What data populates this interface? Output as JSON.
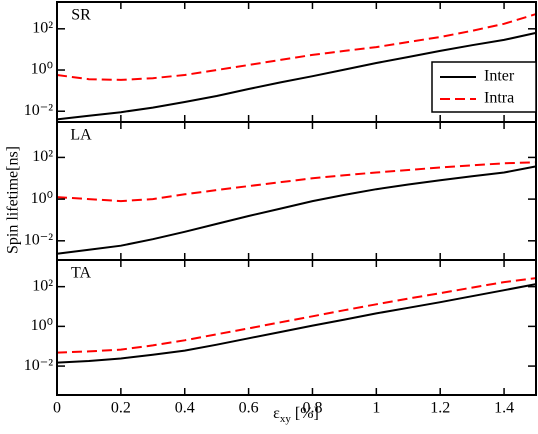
{
  "chart_data": [
    {
      "type": "line",
      "label": "SR",
      "log_y": true,
      "legend": "upper right",
      "x": [
        0,
        0.1,
        0.2,
        0.3,
        0.4,
        0.5,
        0.6,
        0.7,
        0.8,
        0.9,
        1.0,
        1.1,
        1.2,
        1.3,
        1.4,
        1.5
      ],
      "xlim": [
        0,
        1.5
      ],
      "ylim": [
        0.003,
        2000
      ],
      "yticks": [
        {
          "value": 0.01,
          "label": "10⁻²"
        },
        {
          "value": 1,
          "label": "10⁰"
        },
        {
          "value": 100,
          "label": "10²"
        }
      ],
      "series": [
        {
          "name": "Inter",
          "color": "#000000",
          "linestyle": "solid",
          "values": [
            0.004,
            0.006,
            0.009,
            0.015,
            0.028,
            0.055,
            0.12,
            0.25,
            0.5,
            1.05,
            2.2,
            4.3,
            8.5,
            16,
            29,
            63
          ]
        },
        {
          "name": "Intra",
          "color": "#ff0000",
          "linestyle": "dashed",
          "values": [
            0.57,
            0.36,
            0.33,
            0.4,
            0.57,
            1,
            1.75,
            3.1,
            5.4,
            8.5,
            13,
            23,
            40,
            80,
            175,
            520
          ]
        }
      ]
    },
    {
      "type": "line",
      "label": "LA",
      "log_y": true,
      "x": [
        0,
        0.1,
        0.2,
        0.3,
        0.4,
        0.5,
        0.6,
        0.7,
        0.8,
        0.9,
        1.0,
        1.1,
        1.2,
        1.3,
        1.4,
        1.5
      ],
      "xlim": [
        0,
        1.5
      ],
      "ylim": [
        0.0012,
        5000
      ],
      "yticks": [
        {
          "value": 0.01,
          "label": "10⁻²"
        },
        {
          "value": 1,
          "label": "10⁰"
        },
        {
          "value": 100,
          "label": "10²"
        }
      ],
      "series": [
        {
          "name": "Inter",
          "color": "#000000",
          "linestyle": "solid",
          "values": [
            0.0024,
            0.0037,
            0.0058,
            0.012,
            0.027,
            0.065,
            0.155,
            0.35,
            0.8,
            1.6,
            3,
            5,
            8,
            12.5,
            19,
            37
          ]
        },
        {
          "name": "Intra",
          "color": "#ff0000",
          "linestyle": "dashed",
          "values": [
            1.25,
            1,
            0.8,
            1,
            1.7,
            2.7,
            4.2,
            6.5,
            10,
            14,
            19,
            25,
            33,
            42,
            52,
            58
          ]
        }
      ]
    },
    {
      "type": "line",
      "label": "TA",
      "log_y": true,
      "x": [
        0,
        0.1,
        0.2,
        0.3,
        0.4,
        0.5,
        0.6,
        0.7,
        0.8,
        0.9,
        1.0,
        1.1,
        1.2,
        1.3,
        1.4,
        1.5
      ],
      "xlim": [
        0,
        1.5
      ],
      "ylim": [
        0.00035,
        2200
      ],
      "xticks": [
        0,
        0.2,
        0.4,
        0.6,
        0.8,
        1,
        1.2,
        1.4
      ],
      "xlabel": "ε",
      "xlabel_subscript": "xy",
      "xlabel_unit": "[%]",
      "ylabel": "Spin lifetime[ns]",
      "yticks": [
        {
          "value": 0.01,
          "label": "10⁻²"
        },
        {
          "value": 1,
          "label": "10⁰"
        },
        {
          "value": 100,
          "label": "10²"
        }
      ],
      "series": [
        {
          "name": "Inter",
          "color": "#000000",
          "linestyle": "solid",
          "values": [
            0.015,
            0.018,
            0.024,
            0.037,
            0.06,
            0.12,
            0.25,
            0.52,
            1.1,
            2.2,
            4.5,
            8.6,
            16.5,
            33,
            66,
            134
          ]
        },
        {
          "name": "Intra",
          "color": "#ff0000",
          "linestyle": "dashed",
          "values": [
            0.048,
            0.055,
            0.068,
            0.11,
            0.2,
            0.4,
            0.79,
            1.6,
            3.2,
            6.5,
            13,
            25,
            47,
            90,
            170,
            270
          ]
        }
      ]
    }
  ]
}
